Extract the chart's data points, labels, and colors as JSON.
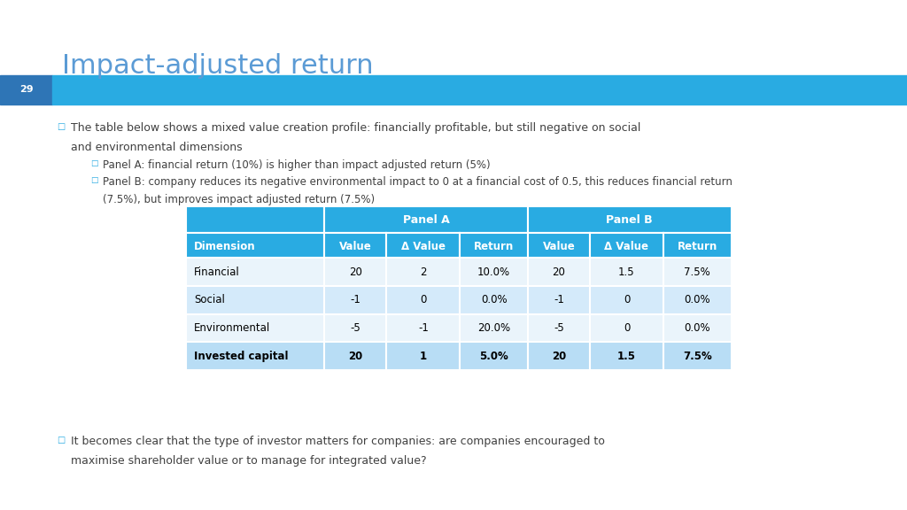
{
  "title": "Impact-adjusted return",
  "title_color": "#5B9BD5",
  "slide_number": "29",
  "bar_dark_color": "#2E75B6",
  "bar_light_color": "#29ABE2",
  "bullet1_main_line1": "The table below shows a mixed value creation profile: financially profitable, but still negative on social",
  "bullet1_main_line2": "and environmental dimensions",
  "bullet1_sub1": "Panel A: financial return (10%) is higher than impact adjusted return (5%)",
  "bullet1_sub2_line1": "Panel B: company reduces its negative environmental impact to 0 at a financial cost of 0.5, this reduces financial return",
  "bullet1_sub2_line2": "(7.5%), but improves impact adjusted return (7.5%)",
  "bullet2_main_line1": "It becomes clear that the type of investor matters for companies: are companies encouraged to",
  "bullet2_main_line2": "maximise shareholder value or to manage for integrated value?",
  "table_header_bg": "#29ABE2",
  "table_row_bg_alt1": "#EAF4FB",
  "table_row_bg_alt2": "#D4EAFA",
  "table_last_row_bg": "#B8DDF5",
  "table_header_text": "#FFFFFF",
  "col_headers": [
    "Dimension",
    "Value",
    "Δ Value",
    "Return",
    "Value",
    "Δ Value",
    "Return"
  ],
  "panel_header_a": "Panel A",
  "panel_header_b": "Panel B",
  "rows": [
    [
      "Financial",
      "20",
      "2",
      "10.0%",
      "20",
      "1.5",
      "7.5%"
    ],
    [
      "Social",
      "-1",
      "0",
      "0.0%",
      "-1",
      "0",
      "0.0%"
    ],
    [
      "Environmental",
      "-5",
      "-1",
      "20.0%",
      "-5",
      "0",
      "0.0%"
    ],
    [
      "Invested capital",
      "20",
      "1",
      "5.0%",
      "20",
      "1.5",
      "7.5%"
    ]
  ],
  "background_color": "#FFFFFF",
  "text_color": "#404040",
  "bullet_color": "#29ABE2"
}
